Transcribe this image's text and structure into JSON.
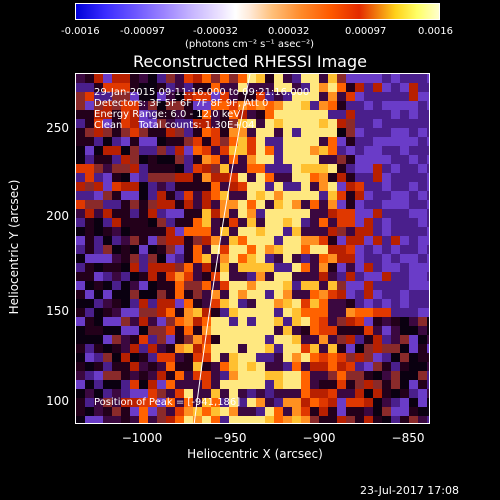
{
  "colorbar": {
    "ticks": [
      "-0.0016",
      "-0.00097",
      "-0.00032",
      "0.00032",
      "0.00097",
      "0.0016"
    ],
    "units": "(photons cm⁻² s⁻¹ asec⁻²)"
  },
  "title": "Reconstructed RHESSI Image",
  "annotation": {
    "time_range": "29-Jan-2015 09:11:16.000 to 09:21:16.000",
    "detectors": "Detectors: 3F 5F 6F 7F 8F 9F, Att 0",
    "energy_range": "Energy Range: 6.0 - 12.0 keV",
    "method_counts": "Clean     Total counts: 1.30E+04",
    "peak": "Position of Peak = [-941,186]"
  },
  "axes": {
    "ylabel": "Heliocentric Y (arcsec)",
    "xlabel": "Heliocentric X (arcsec)",
    "yticks": [
      "250",
      "200",
      "150",
      "100"
    ],
    "xticks": [
      "−1000",
      "−950",
      "−900",
      "−850"
    ]
  },
  "timestamp": "23-Jul-2017 17:08"
}
